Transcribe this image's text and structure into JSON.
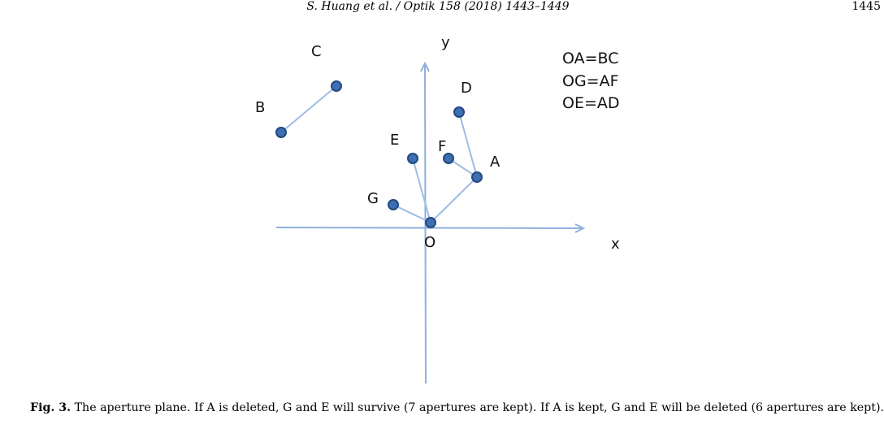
{
  "header": {
    "running_title": "S. Huang et al. / Optik 158 (2018) 1443–1449",
    "page_number": "1445"
  },
  "figure": {
    "axis_labels": {
      "x": "x",
      "y": "y",
      "origin": "O"
    },
    "points": [
      {
        "name": "B",
        "label": "B"
      },
      {
        "name": "C",
        "label": "C"
      },
      {
        "name": "D",
        "label": "D"
      },
      {
        "name": "E",
        "label": "E"
      },
      {
        "name": "F",
        "label": "F"
      },
      {
        "name": "A",
        "label": "A"
      },
      {
        "name": "G",
        "label": "G"
      },
      {
        "name": "O",
        "label": "O"
      }
    ],
    "equalities": [
      "OA=BC",
      "OG=AF",
      "OE=AD"
    ],
    "colors": {
      "axis": "#8eb0db",
      "segment": "#9dbde3",
      "point_fill": "#3e6fb3",
      "point_stroke": "#24497f"
    }
  },
  "caption": {
    "label": "Fig. 3.",
    "text": "The aperture plane. If A is deleted, G and E will survive (7 apertures are kept). If A is kept, G and E will be deleted (6 apertures are kept)."
  }
}
